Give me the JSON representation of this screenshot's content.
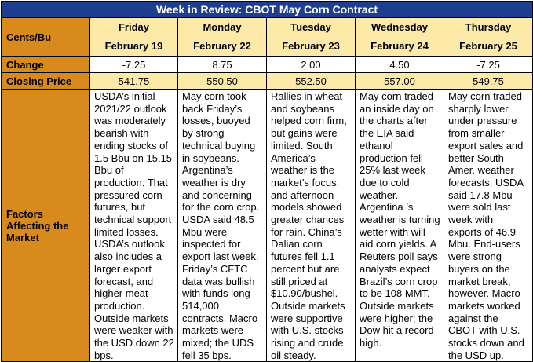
{
  "title": "Week in Review: CBOT May Corn Contract",
  "row_labels": {
    "cents": "Cents/Bu",
    "change": "Change",
    "closing": "Closing Price",
    "factors": "Factors Affecting the Market"
  },
  "days": [
    {
      "day": "Friday",
      "date": "February 19",
      "change": "-7.25",
      "closing": "541.75",
      "factors": "USDA’s initial 2021/22 outlook was moderately bearish with ending stocks of 1.5 Bbu on 15.15 Bbu of production. That pressured corn futures, but technical support limited losses. USDA’s outlook also includes a larger export forecast, and higher meat production. Outside markets were weaker with the USD down 22 bps."
    },
    {
      "day": "Monday",
      "date": "February 22",
      "change": "8.75",
      "closing": "550.50",
      "factors": "May corn took back Friday’s losses, buoyed by strong technical buying in soybeans. Argentina’s weather is dry and concerning for the corn crop. USDA said 48.5 Mbu were inspected for export last week. Friday’s CFTC data was bullish with funds long 514,000 contracts. Macro markets were mixed; the UDS fell 35 bps."
    },
    {
      "day": "Tuesday",
      "date": "February 23",
      "change": "2.00",
      "closing": "552.50",
      "factors": "Rallies in wheat and soybeans helped corn firm, but gains were limited. South America’s weather is the market’s focus, and afternoon models showed greater chances for rain. China’s Dalian corn futures fell 1.1 percent but are still priced at $10.90/bushel. Outside markets were supportive with U.S. stocks rising and crude oil steady."
    },
    {
      "day": "Wednesday",
      "date": "February 24",
      "change": "4.50",
      "closing": "557.00",
      "factors": "May corn traded an inside day on the charts after the EIA said ethanol production fell 25% last week due to cold weather. Argentina ’s weather is turning wetter with will aid corn yields. A Reuters poll says analysts expect Brazil’s corn crop to be 108 MMT. Outside markets were higher; the Dow hit a record high."
    },
    {
      "day": "Thursday",
      "date": "February 25",
      "change": "-7.25",
      "closing": "549.75",
      "factors": "May corn traded sharply lower under pressure from smaller export sales and better South Amer. weather forecasts. USDA said 17.8 Mbu were sold last week with exports of 46.9 Mbu. End-users were strong buyers on the market break, however. Macro markets worked against the CBOT with U.S. stocks down and the USD up."
    }
  ]
}
